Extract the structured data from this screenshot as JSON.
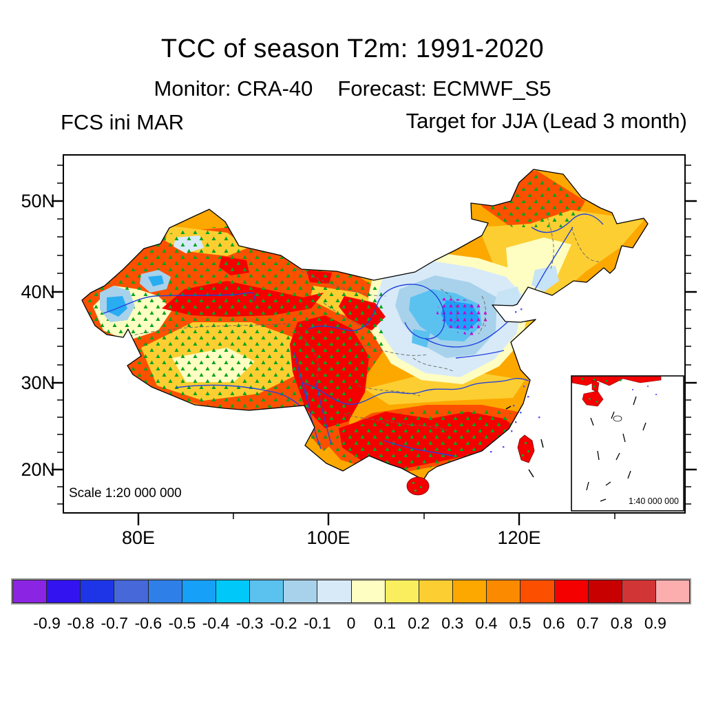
{
  "header": {
    "title": "TCC of season T2m: 1991-2020",
    "monitor": "Monitor: CRA-40",
    "forecast": "Forecast: ECMWF_S5",
    "left_label": "FCS ini MAR",
    "right_label": "Target for JJA (Lead 3 month)"
  },
  "map": {
    "y_tick_labels": [
      "50N",
      "40N",
      "30N",
      "20N"
    ],
    "x_tick_labels": [
      "80E",
      "100E",
      "120E"
    ],
    "scale_label": "Scale 1:20 000 000",
    "inset_scale_label": "1:40 000 000"
  },
  "colorbar": {
    "tick_labels": [
      "-0.9",
      "-0.8",
      "-0.7",
      "-0.6",
      "-0.5",
      "-0.4",
      "-0.3",
      "-0.2",
      "-0.1",
      "0",
      "0.1",
      "0.2",
      "0.3",
      "0.4",
      "0.5",
      "0.6",
      "0.7",
      "0.8",
      "0.9"
    ],
    "colors": [
      "#8C25E3",
      "#3314F0",
      "#1D35E6",
      "#4668D9",
      "#2F7FE8",
      "#17A0F8",
      "#00C8F8",
      "#5BC2F0",
      "#A8D2EB",
      "#D8EAF8",
      "#FEFEC2",
      "#FAEE5F",
      "#FCCE31",
      "#FCA800",
      "#FC8A00",
      "#FC5000",
      "#F50000",
      "#C80000",
      "#D23535",
      "#FCAEAE"
    ]
  },
  "chart_data": {
    "type": "heatmap",
    "subtype": "filled-contour-map",
    "title": "TCC of season T2m: 1991-2020",
    "subtitle": "Monitor: CRA-40   Forecast: ECMWF_S5",
    "left_header": "FCS ini MAR",
    "right_header": "Target for JJA (Lead 3 month)",
    "variable": "Temporal correlation coefficient (TCC) of seasonal 2-m temperature, forecast initialized March, target June-July-August, 3-month lead",
    "region": "China",
    "x_axis": {
      "tick_labels": [
        "80E",
        "100E",
        "120E"
      ],
      "minor_ticks": [
        "90E",
        "110E",
        "130E"
      ],
      "range_deg_e": [
        72,
        137.5
      ]
    },
    "y_axis": {
      "tick_labels": [
        "50N",
        "40N",
        "30N",
        "20N"
      ],
      "range_deg_n": [
        18.5,
        55
      ]
    },
    "contour_levels": [
      -0.9,
      -0.8,
      -0.7,
      -0.6,
      -0.5,
      -0.4,
      -0.3,
      -0.2,
      -0.1,
      0,
      0.1,
      0.2,
      0.3,
      0.4,
      0.5,
      0.6,
      0.7,
      0.8,
      0.9
    ],
    "palette": [
      "#8C25E3",
      "#3314F0",
      "#1D35E6",
      "#4668D9",
      "#2F7FE8",
      "#17A0F8",
      "#00C8F8",
      "#5BC2F0",
      "#A8D2EB",
      "#D8EAF8",
      "#FEFEC2",
      "#FAEE5F",
      "#FCCE31",
      "#FCA800",
      "#FC8A00",
      "#FC5000",
      "#F50000",
      "#C80000",
      "#D23535",
      "#FCAEAE"
    ],
    "legend_position": "bottom horizontal colorbar",
    "grid": false,
    "overlays": {
      "green_dots": "stippling over positive-TCC regions (west China, south China, north Northeast China)",
      "magenta_dots": "stippling in strongest negative-TCC core of North China Plain",
      "rivers": "blue lines",
      "province_borders": "gray dashed lines"
    },
    "map_scale": "Scale 1:20 000 000",
    "inset": {
      "area": "South China Sea",
      "scale": "1:40 000 000"
    },
    "regions": [
      {
        "area": "Tarim Basin / northern Xinjiang band",
        "tcc_range": [
          0.6,
          0.8
        ],
        "stipple": "green"
      },
      {
        "area": "Far-western Xinjiang local spots",
        "tcc_range": [
          -0.5,
          -0.2
        ],
        "stipple": "none"
      },
      {
        "area": "Tibetan Plateau interior",
        "tcc_range": [
          0.2,
          0.5
        ],
        "stipple": "green"
      },
      {
        "area": "Sichuan / Southwest China blob",
        "tcc_range": [
          0.6,
          0.8
        ],
        "stipple": "green"
      },
      {
        "area": "South China coast, Hainan, Taiwan",
        "tcc_range": [
          0.6,
          0.8
        ],
        "stipple": "green"
      },
      {
        "area": "Yangtze corridor",
        "tcc_range": [
          0.2,
          0.4
        ],
        "stipple": "none"
      },
      {
        "area": "North China Plain / lower Yellow River",
        "tcc_range": [
          -0.5,
          -0.1
        ],
        "stipple": "magenta in core"
      },
      {
        "area": "Northeast China (north)",
        "tcc_range": [
          0.4,
          0.6
        ],
        "stipple": "green"
      },
      {
        "area": "Northeast China plain strip",
        "tcc_range": [
          -0.2,
          0.1
        ],
        "stipple": "none"
      }
    ]
  }
}
